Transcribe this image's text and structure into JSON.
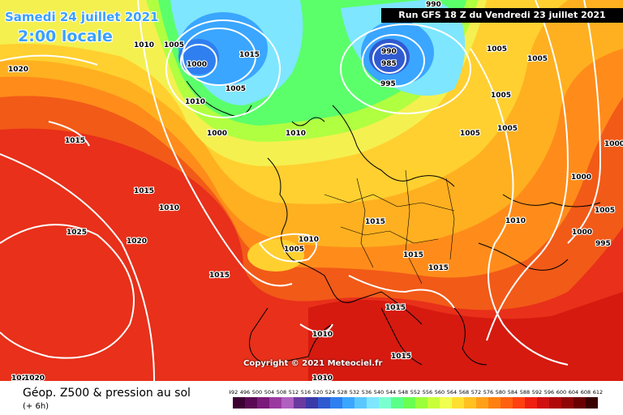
{
  "header": {
    "date": "Samedi 24 juillet 2021",
    "local_time": "2:00 locale",
    "run": "Run GFS 18 Z du Vendredi 23 juillet 2021"
  },
  "copyright": "Copyright © 2021 Meteociel.fr",
  "footer": {
    "title": "Géop. Z500 & pression au sol",
    "subtitle": "(+ 6h)"
  },
  "scale": {
    "labels": [
      "492",
      "496",
      "500",
      "504",
      "508",
      "512",
      "516",
      "520",
      "524",
      "528",
      "532",
      "536",
      "540",
      "544",
      "548",
      "552",
      "556",
      "560",
      "564",
      "568",
      "572",
      "576",
      "580",
      "584",
      "588",
      "592",
      "596",
      "600",
      "604",
      "608",
      "612"
    ],
    "colors": [
      "#3d0033",
      "#5a0a55",
      "#7a1a7a",
      "#9a3aa0",
      "#b060c0",
      "#6a3aa0",
      "#3a3aa8",
      "#2f5ad0",
      "#2f7ff0",
      "#3aa6ff",
      "#5ac8ff",
      "#7ee6ff",
      "#7affd0",
      "#5aff8a",
      "#6aff50",
      "#9bff3a",
      "#c8ff3a",
      "#f0ff50",
      "#ffe030",
      "#ffc020",
      "#ffa018",
      "#ff8010",
      "#ff6010",
      "#ff4010",
      "#f02010",
      "#d01010",
      "#b00808",
      "#900505",
      "#6a0000",
      "#3a0000"
    ]
  },
  "isobar_labels": [
    {
      "text": "1005"
    },
    {
      "text": "1010"
    },
    {
      "text": "1020"
    },
    {
      "text": "1000"
    },
    {
      "text": "1015"
    },
    {
      "text": "1005"
    },
    {
      "text": "1010"
    },
    {
      "text": "1000"
    },
    {
      "text": "1015"
    },
    {
      "text": "1025"
    },
    {
      "text": "1020"
    },
    {
      "text": "1015"
    },
    {
      "text": "1010"
    },
    {
      "text": "990"
    },
    {
      "text": "985"
    },
    {
      "text": "995"
    },
    {
      "text": "1005"
    },
    {
      "text": "1005"
    },
    {
      "text": "1005"
    },
    {
      "text": "1005"
    },
    {
      "text": "1005"
    },
    {
      "text": "1000"
    },
    {
      "text": "1005"
    },
    {
      "text": "1000"
    },
    {
      "text": "995"
    },
    {
      "text": "1010"
    },
    {
      "text": "1015"
    },
    {
      "text": "1015"
    },
    {
      "text": "1015"
    },
    {
      "text": "1010"
    },
    {
      "text": "1005"
    },
    {
      "text": "1015"
    },
    {
      "text": "1010"
    },
    {
      "text": "1010"
    },
    {
      "text": "1015"
    },
    {
      "text": "1015"
    },
    {
      "text": "1010"
    },
    {
      "text": "1020"
    },
    {
      "text": "1020"
    },
    {
      "text": "1000"
    },
    {
      "text": "990"
    }
  ]
}
